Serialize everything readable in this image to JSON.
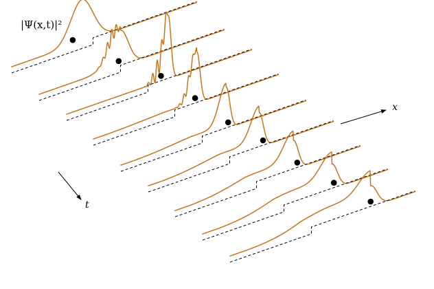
{
  "figure": {
    "y_label": "|Ψ(x,t)|²",
    "x_label": "x",
    "t_label": "t",
    "frames": 10
  },
  "colors": {
    "wave": "#c8741c",
    "potential": "#000000",
    "particle": "#000000",
    "axes": "#000000"
  },
  "icons": {
    "arrowhead": "arrowhead-icon",
    "particle": "particle-dot-icon"
  }
}
